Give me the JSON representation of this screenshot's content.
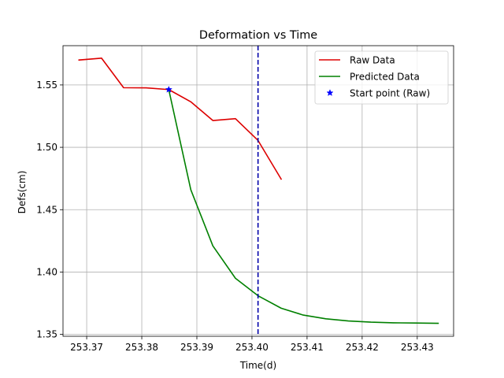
{
  "chart_data": {
    "type": "line",
    "title": "Deformation vs Time",
    "xlabel": "Time(d)",
    "ylabel": "Defs(cm)",
    "xlim": [
      253.3657,
      253.4366
    ],
    "ylim": [
      1.3485,
      1.5815
    ],
    "x_ticks": [
      253.37,
      253.38,
      253.39,
      253.4,
      253.41,
      253.42,
      253.43
    ],
    "x_tick_labels": [
      "253.37",
      "253.38",
      "253.39",
      "253.40",
      "253.41",
      "253.42",
      "253.43"
    ],
    "y_ticks": [
      1.35,
      1.4,
      1.45,
      1.5,
      1.55
    ],
    "y_tick_labels": [
      "1.35",
      "1.40",
      "1.45",
      "1.50",
      "1.55"
    ],
    "grid": true,
    "legend_position": "top-right",
    "series": [
      {
        "name": "Raw Data",
        "kind": "line",
        "color": "#dd0000",
        "x": [
          253.3686,
          253.3727,
          253.3767,
          253.3808,
          253.3849,
          253.3889,
          253.3929,
          253.397,
          253.4011,
          253.4053
        ],
        "y": [
          1.57,
          1.5715,
          1.5478,
          1.5477,
          1.5463,
          1.5365,
          1.5215,
          1.523,
          1.5055,
          1.4745
        ]
      },
      {
        "name": "Predicted Data",
        "kind": "line",
        "color": "#008000",
        "x": [
          253.3849,
          253.3889,
          253.3929,
          253.397,
          253.4011,
          253.4053,
          253.4093,
          253.4134,
          253.4175,
          253.4216,
          253.4257,
          253.4297,
          253.4338
        ],
        "y": [
          1.5463,
          1.466,
          1.421,
          1.395,
          1.381,
          1.371,
          1.3655,
          1.3625,
          1.3608,
          1.3598,
          1.3593,
          1.3591,
          1.3589
        ]
      },
      {
        "name": "Start point (Raw)",
        "kind": "marker",
        "marker": "star",
        "color": "#0000ff",
        "x": [
          253.3849
        ],
        "y": [
          1.5463
        ]
      }
    ],
    "vline": {
      "x": 253.4011,
      "color": "#0000aa",
      "style": "dashed"
    }
  }
}
